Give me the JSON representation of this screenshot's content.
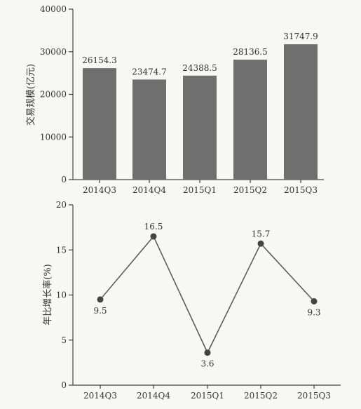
{
  "chart_data": [
    {
      "type": "bar",
      "categories": [
        "2014Q3",
        "2014Q4",
        "2015Q1",
        "2015Q2",
        "2015Q3"
      ],
      "values": [
        26154.3,
        23474.7,
        24388.5,
        28136.5,
        31747.9
      ],
      "data_labels": [
        "26154.3",
        "23474.7",
        "24388.5",
        "28136.5",
        "31747.9"
      ],
      "ylabel": "交易规模(亿元)",
      "ylim": [
        0,
        40000
      ],
      "yticks": [
        0,
        10000,
        20000,
        30000,
        40000
      ],
      "bar_color": "#6f6f6f",
      "grid": false
    },
    {
      "type": "line",
      "categories": [
        "2014Q3",
        "2014Q4",
        "2015Q1",
        "2015Q2",
        "2015Q3"
      ],
      "values": [
        9.5,
        16.5,
        3.6,
        15.7,
        9.3
      ],
      "data_labels": [
        "9.5",
        "16.5",
        "3.6",
        "15.7",
        "9.3"
      ],
      "ylabel": "年比增长率(%)",
      "ylim": [
        0,
        20
      ],
      "yticks": [
        0,
        5,
        10,
        15,
        20
      ],
      "line_color": "#555555",
      "marker_color": "#444444",
      "grid": false
    }
  ]
}
